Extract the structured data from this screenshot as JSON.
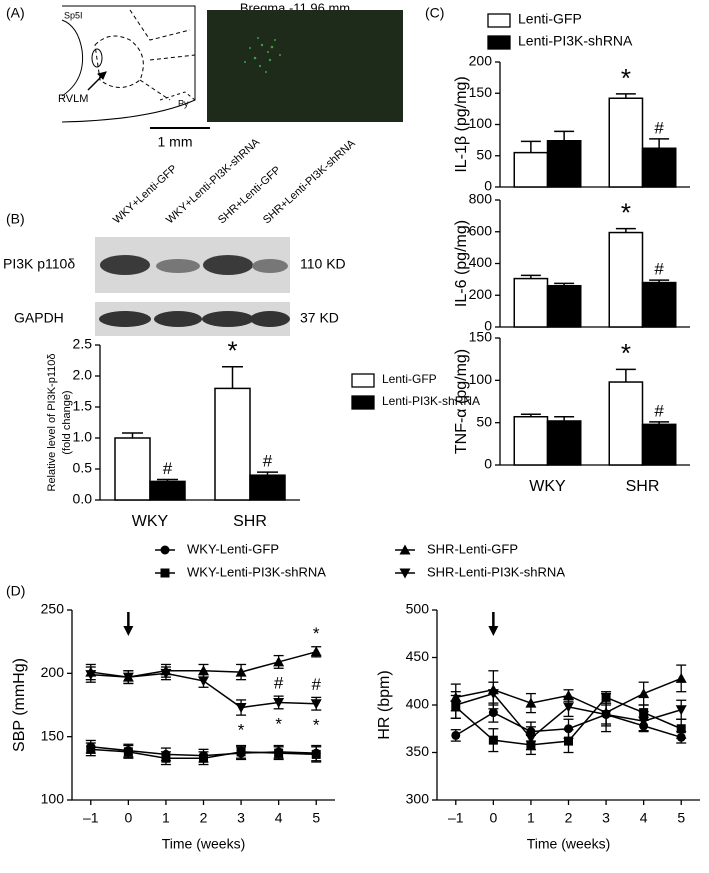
{
  "figure": {
    "panel_a": {
      "label": "(A)",
      "title": "Bregma -11.96 mm",
      "regions": [
        "Sp5I",
        "RVLM",
        "Py"
      ],
      "scale": "1 mm"
    },
    "panel_b": {
      "label": "(B)",
      "lanes": [
        "WKY+Lenti-GFP",
        "WKY+Lenti-PI3K-shRNA",
        "SHR+Lenti-GFP",
        "SHR+Lenti-PI3K-shRNA"
      ],
      "blots": [
        {
          "name": "PI3K p110δ",
          "size": "110 KD"
        },
        {
          "name": "GAPDH",
          "size": "37 KD"
        }
      ]
    },
    "panel_c": {
      "label": "(C)"
    },
    "panel_d": {
      "label": "(D)"
    }
  },
  "chart_data": [
    {
      "type": "bar",
      "ylabel": [
        "Relative level of PI3K-p110δ",
        "(fold change)"
      ],
      "categories": [
        "WKY",
        "SHR"
      ],
      "ylim": [
        0,
        2.5
      ],
      "yticks": [
        {
          "value": 0,
          "label": "0.0"
        },
        0.5,
        {
          "value": 1,
          "label": "1.0"
        },
        1.5,
        {
          "value": 2,
          "label": "2.0"
        },
        2.5
      ],
      "series": [
        {
          "name": "Lenti-GFP",
          "color": "#ffffff",
          "values": [
            1.0,
            1.8
          ],
          "errors": [
            0.08,
            0.35
          ],
          "annotations": [
            null,
            "*"
          ]
        },
        {
          "name": "Lenti-PI3K-shRNA",
          "color": "#000000",
          "values": [
            0.3,
            0.4
          ],
          "errors": [
            0.03,
            0.05
          ],
          "annotations": [
            "#",
            "#"
          ]
        }
      ]
    },
    {
      "type": "bar",
      "ylabel": "IL-1β (pg/mg)",
      "ylim": [
        0,
        200
      ],
      "yticks": [
        0,
        50,
        100,
        150,
        200
      ],
      "series": [
        {
          "name": "Lenti-GFP",
          "color": "#ffffff",
          "values": [
            55,
            142
          ],
          "errors": [
            18,
            7
          ],
          "annotations": [
            null,
            "*"
          ]
        },
        {
          "name": "Lenti-PI3K-shRNA",
          "color": "#000000",
          "values": [
            74,
            62
          ],
          "errors": [
            15,
            15
          ],
          "annotations": [
            null,
            "#"
          ]
        }
      ]
    },
    {
      "type": "bar",
      "ylabel": "IL-6 (pg/mg)",
      "ylim": [
        0,
        800
      ],
      "yticks": [
        0,
        200,
        400,
        600,
        800
      ],
      "series": [
        {
          "color": "#ffffff",
          "values": [
            305,
            595
          ],
          "errors": [
            20,
            25
          ],
          "annotations": [
            null,
            "*"
          ]
        },
        {
          "color": "#000000",
          "values": [
            260,
            280
          ],
          "errors": [
            15,
            15
          ],
          "annotations": [
            null,
            "#"
          ]
        }
      ]
    },
    {
      "type": "bar",
      "ylabel": "TNF-α (pg/mg)",
      "categories": [
        "WKY",
        "SHR"
      ],
      "ylim": [
        0,
        150
      ],
      "yticks": [
        0,
        50,
        100,
        150
      ],
      "series": [
        {
          "color": "#ffffff",
          "values": [
            57,
            98
          ],
          "errors": [
            3,
            15
          ],
          "annotations": [
            null,
            "*"
          ]
        },
        {
          "color": "#000000",
          "values": [
            52,
            48
          ],
          "errors": [
            5,
            3
          ],
          "annotations": [
            null,
            "#"
          ]
        }
      ]
    },
    {
      "type": "line",
      "xlabel": "Time (weeks)",
      "ylabel": "SBP (mmHg)",
      "arrow_at": 0,
      "x": [
        -1,
        0,
        1,
        2,
        3,
        4,
        5
      ],
      "xlim": [
        -1.5,
        5.5
      ],
      "xticks": [
        {
          "value": -1,
          "label": "–1"
        },
        0,
        1,
        2,
        3,
        4,
        5
      ],
      "ylim": [
        100,
        250
      ],
      "yticks": [
        100,
        150,
        200,
        250
      ],
      "series": [
        {
          "name": "WKY-Lenti-GFP",
          "marker": "circle",
          "color": "#000000",
          "values": [
            142,
            139,
            136,
            135,
            137,
            138,
            137
          ],
          "errors": [
            5,
            5,
            5,
            5,
            5,
            5,
            6
          ]
        },
        {
          "name": "WKY-Lenti-PI3K-shRNA",
          "marker": "square",
          "color": "#000000",
          "values": [
            140,
            138,
            133,
            133,
            138,
            137,
            136
          ],
          "errors": [
            5,
            5,
            5,
            5,
            5,
            5,
            6
          ]
        },
        {
          "name": "SHR-Lenti-GFP",
          "marker": "triangle",
          "color": "#000000",
          "values": [
            201,
            197,
            202,
            202,
            201,
            209,
            217
          ],
          "errors": [
            6,
            5,
            5,
            5,
            6,
            5,
            4
          ],
          "annotations_above": [
            null,
            null,
            null,
            null,
            null,
            null,
            "*"
          ]
        },
        {
          "name": "SHR-Lenti-PI3K-shRNA",
          "marker": "triangle-down",
          "color": "#000000",
          "values": [
            199,
            197,
            200,
            194,
            173,
            177,
            176
          ],
          "errors": [
            6,
            5,
            5,
            5,
            6,
            5,
            5
          ],
          "annotations_above": [
            null,
            null,
            null,
            null,
            null,
            "#",
            "#"
          ],
          "annotations_below": [
            null,
            null,
            null,
            null,
            "*",
            "*",
            "*"
          ]
        }
      ]
    },
    {
      "type": "line",
      "xlabel": "Time (weeks)",
      "ylabel": "HR (bpm)",
      "arrow_at": 0,
      "x": [
        -1,
        0,
        1,
        2,
        3,
        4,
        5
      ],
      "xlim": [
        -1.5,
        5.5
      ],
      "xticks": [
        {
          "value": -1,
          "label": "–1"
        },
        0,
        1,
        2,
        3,
        4,
        5
      ],
      "ylim": [
        300,
        500
      ],
      "yticks": [
        300,
        350,
        400,
        450,
        500
      ],
      "series": [
        {
          "marker": "circle",
          "color": "#000000",
          "values": [
            368,
            392,
            372,
            375,
            390,
            378,
            366
          ],
          "errors": [
            6,
            10,
            10,
            10,
            10,
            6,
            6
          ]
        },
        {
          "marker": "square",
          "color": "#000000",
          "values": [
            398,
            363,
            358,
            362,
            408,
            392,
            375
          ],
          "errors": [
            12,
            12,
            10,
            12,
            6,
            8,
            10
          ]
        },
        {
          "marker": "triangle",
          "color": "#000000",
          "values": [
            408,
            416,
            402,
            410,
            392,
            412,
            428
          ],
          "errors": [
            14,
            20,
            10,
            6,
            20,
            12,
            14
          ]
        },
        {
          "marker": "triangle-down",
          "color": "#000000",
          "values": [
            400,
            412,
            365,
            398,
            390,
            383,
            395
          ],
          "errors": [
            14,
            12,
            12,
            10,
            12,
            10,
            10
          ]
        }
      ]
    }
  ]
}
